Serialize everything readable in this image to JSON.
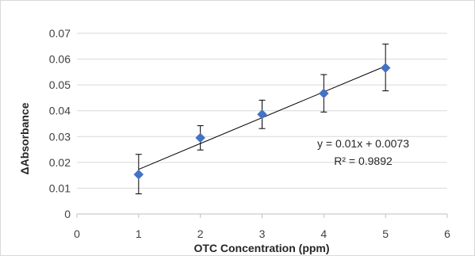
{
  "chart_data": {
    "type": "scatter",
    "xlabel": "OTC Concentration (ppm)",
    "ylabel": "ΔAbsorbance",
    "xlim": [
      0,
      6
    ],
    "ylim": [
      0,
      0.07
    ],
    "x_ticks": [
      "0",
      "1",
      "2",
      "3",
      "4",
      "5",
      "6"
    ],
    "y_ticks": [
      "0",
      "0.01",
      "0.02",
      "0.03",
      "0.04",
      "0.05",
      "0.06",
      "0.07"
    ],
    "grid": "horizontal",
    "legend": "none",
    "series": [
      {
        "marker": "diamond",
        "color": "#4472c4",
        "points": [
          {
            "x": 1,
            "y": 0.0153,
            "err_low": 0.0075,
            "err_high": 0.0078
          },
          {
            "x": 2,
            "y": 0.0295,
            "err_low": 0.0047,
            "err_high": 0.0047
          },
          {
            "x": 3,
            "y": 0.0386,
            "err_low": 0.0055,
            "err_high": 0.0055
          },
          {
            "x": 4,
            "y": 0.0467,
            "err_low": 0.0072,
            "err_high": 0.0073
          },
          {
            "x": 5,
            "y": 0.0566,
            "err_low": 0.0089,
            "err_high": 0.0092
          }
        ]
      }
    ],
    "trendline": {
      "slope": 0.01,
      "intercept": 0.0073,
      "x_range": [
        1,
        5
      ],
      "color": "#000000"
    },
    "annotations": {
      "equation": "y = 0.01x + 0.0073",
      "r_squared": "R² = 0.9892"
    }
  }
}
